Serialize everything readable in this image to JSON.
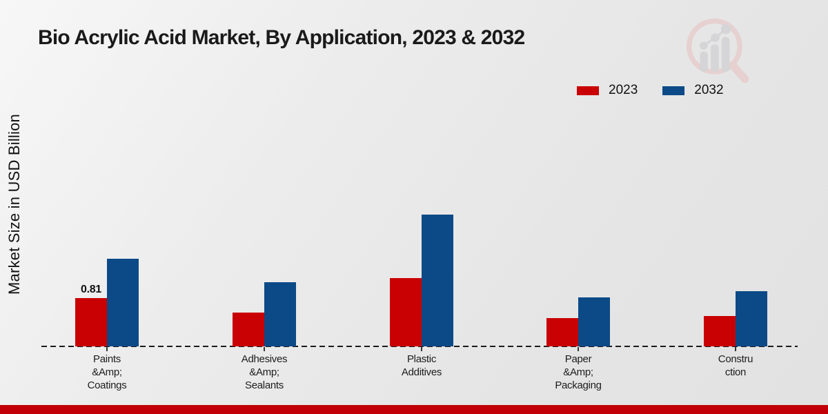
{
  "chart_data": {
    "type": "bar",
    "title": "Bio Acrylic Acid Market, By Application, 2023 & 2032",
    "ylabel": "Market Size in USD Billion",
    "categories": [
      "Paints\n&Amp;\nCoatings",
      "Adhesives\n&Amp;\nSealants",
      "Plastic\nAdditives",
      "Paper\n&Amp;\nPackaging",
      "Constru\nction"
    ],
    "series": [
      {
        "name": "2023",
        "color": "#c90103",
        "values": [
          0.81,
          0.57,
          1.15,
          0.47,
          0.51
        ]
      },
      {
        "name": "2032",
        "color": "#0b4a87",
        "values": [
          1.47,
          1.08,
          2.21,
          0.82,
          0.93
        ]
      }
    ],
    "shown_data_labels": [
      {
        "category_index": 0,
        "series": "2023",
        "text": "0.81"
      }
    ],
    "legend_position": "top-right",
    "baseline_style": "dashed",
    "grid": false,
    "axis_ticks_visible": false
  },
  "colors": {
    "series_2023": "#c90103",
    "series_2032": "#0b4a87",
    "footer_stripe": "#c00006",
    "title_text": "#1a1a1a"
  }
}
